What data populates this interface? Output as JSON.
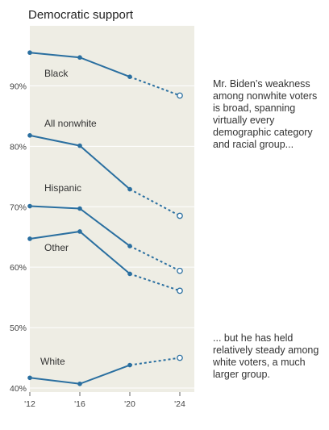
{
  "chart_data": {
    "type": "line",
    "title": "Democratic support",
    "xlabel": "",
    "ylabel": "",
    "x": [
      "'12",
      "'16",
      "'20",
      "'24"
    ],
    "x_values": [
      2012,
      2016,
      2020,
      2024
    ],
    "ylim": [
      38,
      99
    ],
    "yticks": [
      40,
      50,
      60,
      70,
      80,
      90
    ],
    "ytick_labels": [
      "40%",
      "50%",
      "60%",
      "70%",
      "80%",
      "90%"
    ],
    "series": [
      {
        "name": "Black",
        "values": [
          95.5,
          94.7,
          91.5,
          88.4
        ]
      },
      {
        "name": "All nonwhite",
        "values": [
          81.8,
          80.1,
          72.9,
          68.5
        ]
      },
      {
        "name": "Hispanic",
        "values": [
          70.1,
          69.7,
          63.5,
          59.4
        ]
      },
      {
        "name": "Other",
        "values": [
          64.7,
          65.9,
          58.9,
          56.1
        ]
      },
      {
        "name": "White",
        "values": [
          41.7,
          40.7,
          43.8,
          45.0
        ]
      }
    ],
    "last_point_projected": true,
    "colors": {
      "line": "#2a6fa0",
      "plot_bg": "#eeede4",
      "grid": "#ffffff"
    }
  },
  "annotations": [
    "Mr. Biden’s weakness among nonwhite voters is broad, spanning virtually every demographic category and racial group...",
    "... but he has held relatively steady among white voters, a much larger group."
  ]
}
